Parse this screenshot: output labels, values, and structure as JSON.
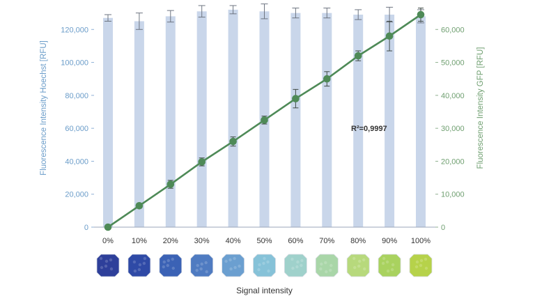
{
  "chart_data": {
    "type": "bar",
    "categories": [
      "0%",
      "10%",
      "20%",
      "30%",
      "40%",
      "50%",
      "60%",
      "70%",
      "80%",
      "90%",
      "100%"
    ],
    "series": [
      {
        "name": "Hoechst",
        "type": "bar",
        "axis": "left",
        "values": [
          127000,
          125000,
          128000,
          131000,
          132000,
          131000,
          130000,
          130000,
          129000,
          129000,
          128000
        ],
        "errors": [
          2000,
          5000,
          3500,
          3500,
          2500,
          4500,
          3000,
          3000,
          3000,
          4500,
          4000
        ],
        "color": "#c9d6ea"
      },
      {
        "name": "GFP",
        "type": "line",
        "axis": "right",
        "values": [
          0,
          6500,
          13000,
          19800,
          26000,
          32500,
          39000,
          45000,
          52000,
          58000,
          64500
        ],
        "errors": [
          0,
          700,
          1200,
          1200,
          1400,
          1200,
          2800,
          2200,
          1500,
          4500,
          2000
        ],
        "color": "#4e8a57"
      }
    ],
    "left_axis": {
      "title": "Fluorescence Intensity Hoechst [RFU]",
      "range": [
        0,
        140000
      ],
      "ticks": [
        0,
        20000,
        40000,
        60000,
        80000,
        100000,
        120000
      ],
      "tick_labels": [
        "0",
        "20,000",
        "40,000",
        "60,000",
        "80,000",
        "100,000",
        "120,000"
      ],
      "color": "#6a9cc9"
    },
    "right_axis": {
      "title": "Fluorescence Intensity GFP [RFU]",
      "range": [
        0,
        70000
      ],
      "ticks": [
        0,
        10000,
        20000,
        30000,
        40000,
        50000,
        60000
      ],
      "tick_labels": [
        "0",
        "10,000",
        "20,000",
        "30,000",
        "40,000",
        "50,000",
        "60,000"
      ],
      "color": "#6f9f70"
    },
    "xlabel": "Signal intensity",
    "annotation": "R²=0,9997",
    "grid": false,
    "well_images": [
      "#2e3f9a",
      "#2f4aa6",
      "#3b62b5",
      "#4f7bc1",
      "#6b9fd0",
      "#86c2d8",
      "#9fd1cb",
      "#a9d6a8",
      "#b7d97c",
      "#a9d25f",
      "#b6d24a"
    ]
  }
}
